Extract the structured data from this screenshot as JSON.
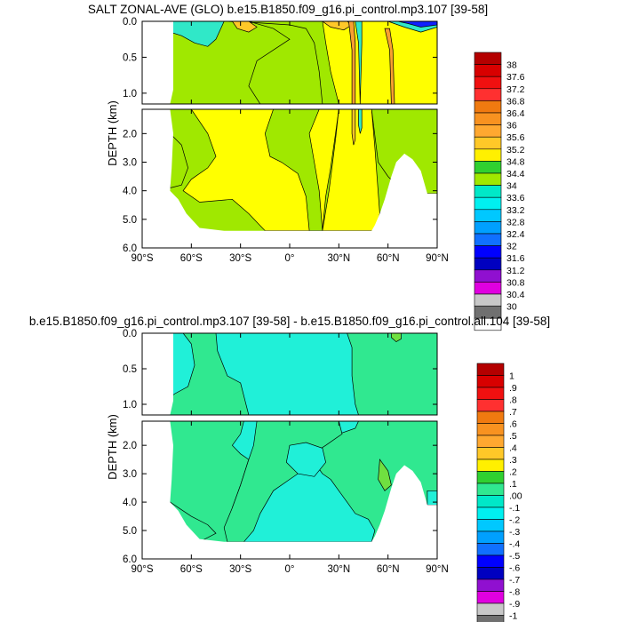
{
  "chart_data": [
    {
      "type": "heatmap",
      "title": "SALT ZONAL-AVE (GLO) b.e15.B1850.f09_g16.pi_control.mp3.107 [39-58]",
      "ylabel": "DEPTH (km)",
      "xlabel": "",
      "x_ticks": [
        "90°S",
        "60°S",
        "30°S",
        "0°",
        "30°N",
        "60°N",
        "90°N"
      ],
      "x_tick_values": [
        -90,
        -60,
        -30,
        0,
        30,
        60,
        90
      ],
      "y_ticks_upper": [
        "0.0",
        "0.5",
        "1.0"
      ],
      "y_tick_values_upper": [
        0.0,
        0.5,
        1.0
      ],
      "y_ticks_lower": [
        "2.0",
        "3.0",
        "4.0",
        "5.0",
        "6.0"
      ],
      "y_tick_values_lower": [
        2.0,
        3.0,
        4.0,
        5.0,
        6.0
      ],
      "xlim": [
        -90,
        90
      ],
      "ylim_upper": [
        1.15,
        0.0
      ],
      "ylim_lower": [
        6.0,
        1.15
      ],
      "colorbar": {
        "labels": [
          "38",
          "37.6",
          "37.2",
          "36.8",
          "36.4",
          "36",
          "35.6",
          "35.2",
          "34.8",
          "34.4",
          "34",
          "33.6",
          "33.2",
          "32.8",
          "32.4",
          "32",
          "31.6",
          "31.2",
          "30.8",
          "30.4",
          "30"
        ],
        "colors": [
          "#b40000",
          "#d80000",
          "#f01010",
          "#ff3030",
          "#f07a10",
          "#f89220",
          "#ffa830",
          "#ffc828",
          "#fff000",
          "#30d030",
          "#a0e800",
          "#00e8c8",
          "#00f0f0",
          "#00c8ff",
          "#00a0ff",
          "#1070ff",
          "#0000ff",
          "#0000c0",
          "#9010d0",
          "#e000e0",
          "#c8c8c8",
          "#707070",
          "#ffffff"
        ]
      },
      "fill_colors": {
        "background": "#a0e800",
        "salty": "#ffff00",
        "saltier": "#ffc828",
        "fresh": "#30e8c8",
        "surface_high": "#f8a030",
        "arctic_low": "#1020ff"
      }
    },
    {
      "type": "heatmap",
      "title": "b.e15.B1850.f09_g16.pi_control.mp3.107 [39-58] - b.e15.B1850.f09_g16.pi_control.all.104 [39-58]",
      "ylabel": "DEPTH (km)",
      "xlabel": "",
      "x_ticks": [
        "90°S",
        "60°S",
        "30°S",
        "0°",
        "30°N",
        "60°N",
        "90°N"
      ],
      "x_tick_values": [
        -90,
        -60,
        -30,
        0,
        30,
        60,
        90
      ],
      "y_ticks_upper": [
        "0.0",
        "0.5",
        "1.0"
      ],
      "y_tick_values_upper": [
        0.0,
        0.5,
        1.0
      ],
      "y_ticks_lower": [
        "2.0",
        "3.0",
        "4.0",
        "5.0",
        "6.0"
      ],
      "y_tick_values_lower": [
        2.0,
        3.0,
        4.0,
        5.0,
        6.0
      ],
      "xlim": [
        -90,
        90
      ],
      "ylim_upper": [
        1.15,
        0.0
      ],
      "ylim_lower": [
        6.0,
        1.15
      ],
      "colorbar": {
        "labels": [
          "1",
          ".9",
          ".8",
          ".7",
          ".6",
          ".5",
          ".4",
          ".3",
          ".2",
          ".1",
          ".00",
          "-.1",
          "-.2",
          "-.3",
          "-.4",
          "-.5",
          "-.6",
          "-.7",
          "-.8",
          "-.9",
          "-1"
        ],
        "colors": [
          "#b40000",
          "#d80000",
          "#f01010",
          "#ff3030",
          "#f07a10",
          "#f89220",
          "#ffa830",
          "#ffc828",
          "#fff000",
          "#30d030",
          "#30e890",
          "#00e8c8",
          "#00f0f0",
          "#00c8ff",
          "#00a0ff",
          "#1070ff",
          "#0000ff",
          "#0000c0",
          "#9010d0",
          "#e000e0",
          "#c8c8c8",
          "#707070",
          "#ffffff"
        ]
      },
      "fill_colors": {
        "background": "#30e890",
        "negative": "#20f0d8",
        "positive": "#70e040"
      }
    }
  ]
}
